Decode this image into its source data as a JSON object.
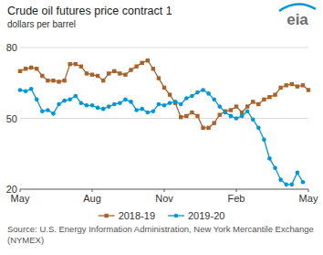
{
  "chart_data": {
    "type": "line",
    "title": "Crude oil futures price contract 1",
    "ylabel": "dollars per barrel",
    "logo": "eia",
    "source": "Source: U.S. Energy Information Administration, New York Mercantile Exchange (NYMEX)",
    "categories": [
      "May",
      null,
      null,
      null,
      null,
      null,
      null,
      null,
      null,
      null,
      null,
      null,
      null,
      "Aug",
      null,
      null,
      null,
      null,
      null,
      null,
      null,
      null,
      null,
      null,
      null,
      null,
      "Nov",
      null,
      null,
      null,
      null,
      null,
      null,
      null,
      null,
      null,
      null,
      null,
      null,
      "Feb",
      null,
      null,
      null,
      null,
      null,
      null,
      null,
      null,
      null,
      null,
      null,
      null,
      "May"
    ],
    "series": [
      {
        "name": "2018-19",
        "color": "#a9622a",
        "marker": "square",
        "line_style": "solid",
        "values": [
          70,
          71,
          71.5,
          71,
          68,
          66,
          66,
          65.5,
          66,
          73,
          73,
          72,
          69,
          68.5,
          68,
          66,
          69,
          70,
          69,
          68.5,
          70.5,
          72,
          73.5,
          74.5,
          71,
          67,
          63,
          60,
          56.5,
          50.5,
          51,
          52.5,
          51,
          46,
          46,
          48,
          51.5,
          53,
          53.5,
          55,
          52.5,
          55,
          57,
          56,
          58,
          59,
          60,
          63,
          64,
          64.5,
          63.5,
          64,
          62
        ]
      },
      {
        "name": "2019-20",
        "color": "#0096d7",
        "marker": "circle",
        "line_style": "solid",
        "values": [
          62,
          61.5,
          62.5,
          58,
          53,
          53.5,
          52,
          56,
          57.5,
          58,
          59.5,
          56.5,
          55.5,
          55.5,
          54.5,
          54,
          55,
          56,
          56.5,
          58,
          57,
          53.5,
          54,
          52.5,
          53,
          56,
          55.5,
          56.5,
          57,
          56,
          58.5,
          59.5,
          61,
          62,
          60.5,
          58,
          55,
          52.5,
          51,
          50,
          51,
          53,
          49.5,
          46,
          41,
          33,
          29,
          24,
          22,
          22,
          27,
          23,
          null
        ]
      }
    ],
    "ylim": [
      20,
      80
    ],
    "yticks": [
      20,
      50,
      80
    ],
    "grid": true,
    "legend": "bottom"
  }
}
